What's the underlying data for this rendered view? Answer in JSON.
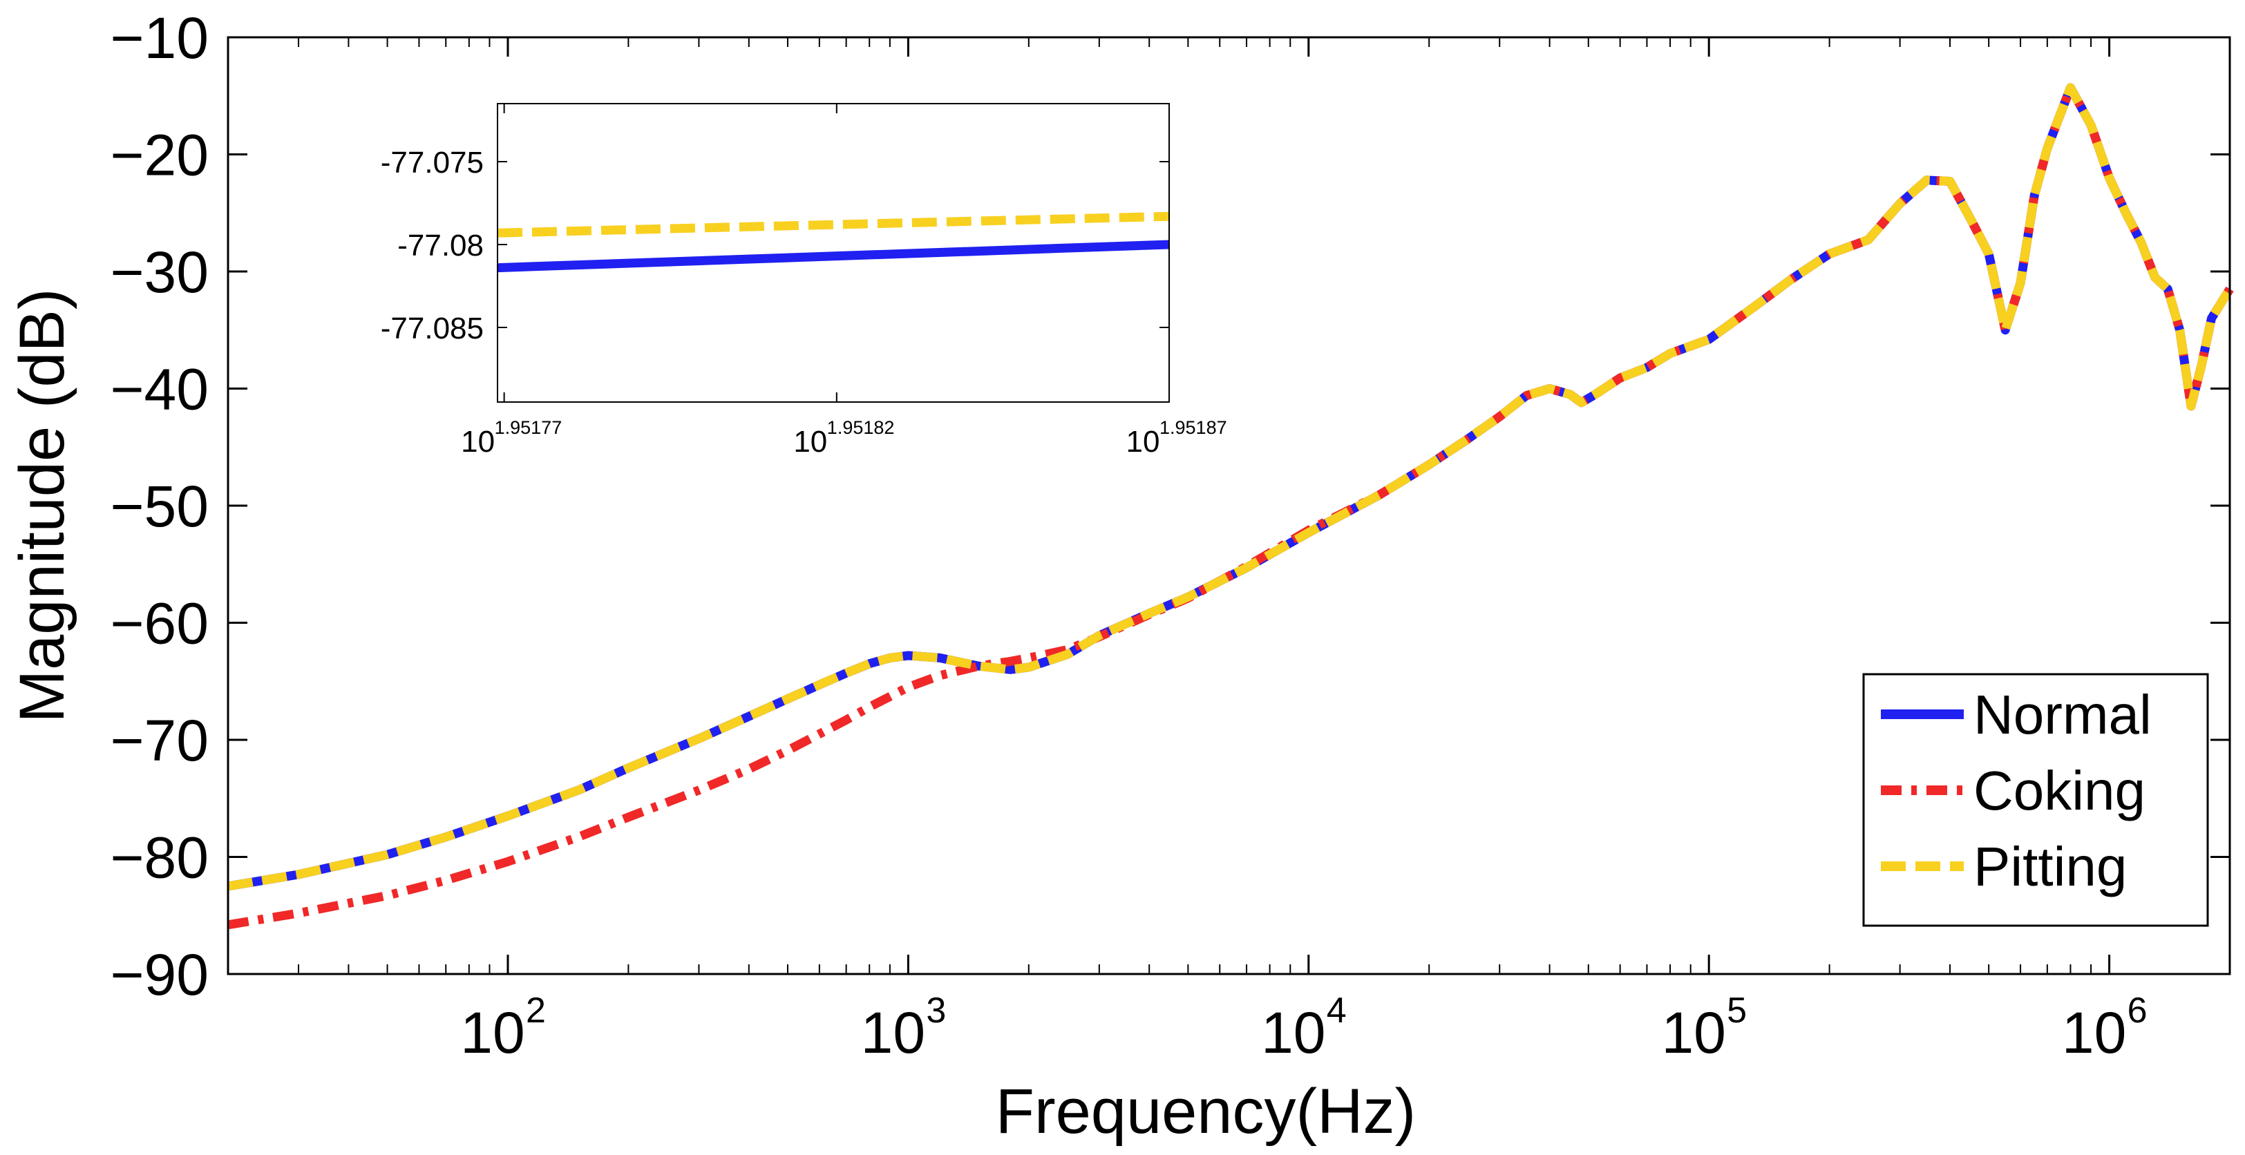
{
  "chart_data": {
    "type": "line",
    "title": "",
    "xlabel": "Frequency(Hz)",
    "ylabel": "Magnitude (dB)",
    "xscale": "log",
    "xlim": [
      20,
      2000000
    ],
    "ylim": [
      -90,
      -10
    ],
    "x_ticks": [
      {
        "base": "10",
        "exp": "2",
        "value": 100
      },
      {
        "base": "10",
        "exp": "3",
        "value": 1000
      },
      {
        "base": "10",
        "exp": "4",
        "value": 10000
      },
      {
        "base": "10",
        "exp": "5",
        "value": 100000
      },
      {
        "base": "10",
        "exp": "6",
        "value": 1000000
      }
    ],
    "y_ticks": [
      {
        "value": -10,
        "label": "−10"
      },
      {
        "value": -20,
        "label": "−20"
      },
      {
        "value": -30,
        "label": "−30"
      },
      {
        "value": -40,
        "label": "−40"
      },
      {
        "value": -50,
        "label": "−50"
      },
      {
        "value": -60,
        "label": "−60"
      },
      {
        "value": -70,
        "label": "−70"
      },
      {
        "value": -80,
        "label": "−80"
      },
      {
        "value": -90,
        "label": "−90"
      }
    ],
    "legend_position": "bottom-right",
    "series": [
      {
        "name": "Normal",
        "color": "#2020f0",
        "style": "solid",
        "x": [
          20,
          30,
          50,
          70,
          100,
          150,
          200,
          300,
          400,
          500,
          600,
          700,
          800,
          900,
          1000,
          1200,
          1500,
          1800,
          2000,
          2500,
          3000,
          4000,
          5000,
          7000,
          10000,
          15000,
          20000,
          25000,
          30000,
          35000,
          40000,
          45000,
          48000,
          52000,
          60000,
          70000,
          80000,
          100000,
          130000,
          160000,
          200000,
          250000,
          300000,
          350000,
          400000,
          450000,
          500000,
          550000,
          600000,
          650000,
          700000,
          800000,
          900000,
          1000000,
          1100000,
          1200000,
          1300000,
          1400000,
          1500000,
          1600000,
          1700000,
          1800000,
          2000000
        ],
        "y": [
          -82.5,
          -81.5,
          -79.8,
          -78.3,
          -76.5,
          -74.3,
          -72.4,
          -69.9,
          -68.0,
          -66.5,
          -65.3,
          -64.3,
          -63.5,
          -63.0,
          -62.8,
          -63.0,
          -63.7,
          -64.0,
          -63.8,
          -62.7,
          -61.1,
          -59.2,
          -57.8,
          -55.3,
          -52.3,
          -49.1,
          -46.5,
          -44.3,
          -42.4,
          -40.6,
          -40.0,
          -40.5,
          -41.2,
          -40.5,
          -39.1,
          -38.2,
          -37.0,
          -35.8,
          -33.0,
          -30.7,
          -28.5,
          -27.3,
          -24.2,
          -22.2,
          -22.3,
          -25.5,
          -28.5,
          -35.0,
          -31.0,
          -23.5,
          -19.5,
          -14.3,
          -17.5,
          -22.0,
          -25.0,
          -27.5,
          -30.5,
          -31.5,
          -35.0,
          -41.5,
          -38.0,
          -34.0,
          -31.5
        ]
      },
      {
        "name": "Coking",
        "color": "#f02828",
        "style": "dashdot",
        "x": [
          20,
          30,
          50,
          70,
          100,
          150,
          200,
          300,
          400,
          500,
          600,
          700,
          800,
          900,
          1000,
          1200,
          1500,
          1800,
          2000,
          2500,
          3000,
          4000,
          5000,
          7000,
          10000,
          15000,
          20000,
          25000,
          30000,
          35000,
          40000,
          45000,
          48000,
          52000,
          60000,
          70000,
          80000,
          100000,
          130000,
          160000,
          200000,
          250000,
          300000,
          350000,
          400000,
          450000,
          500000,
          550000,
          600000,
          650000,
          700000,
          800000,
          900000,
          1000000,
          1100000,
          1200000,
          1300000,
          1400000,
          1500000,
          1600000,
          1700000,
          1800000,
          2000000
        ],
        "y": [
          -85.8,
          -84.8,
          -83.3,
          -82.0,
          -80.4,
          -78.3,
          -76.6,
          -74.3,
          -72.5,
          -70.9,
          -69.5,
          -68.3,
          -67.2,
          -66.3,
          -65.5,
          -64.5,
          -63.7,
          -63.3,
          -63.0,
          -62.3,
          -61.2,
          -59.3,
          -57.9,
          -55.2,
          -52.1,
          -49.1,
          -46.5,
          -44.3,
          -42.4,
          -40.6,
          -40.0,
          -40.5,
          -41.2,
          -40.5,
          -39.1,
          -38.2,
          -37.0,
          -35.8,
          -33.0,
          -30.7,
          -28.5,
          -27.3,
          -24.2,
          -22.2,
          -22.3,
          -25.5,
          -28.5,
          -35.0,
          -31.0,
          -23.5,
          -19.5,
          -14.3,
          -17.5,
          -22.0,
          -25.0,
          -27.5,
          -30.5,
          -31.5,
          -35.0,
          -41.5,
          -38.0,
          -34.0,
          -31.5
        ]
      },
      {
        "name": "Pitting",
        "color": "#f8d020",
        "style": "dashed",
        "x": [
          20,
          30,
          50,
          70,
          100,
          150,
          200,
          300,
          400,
          500,
          600,
          700,
          800,
          900,
          1000,
          1200,
          1500,
          1800,
          2000,
          2500,
          3000,
          4000,
          5000,
          7000,
          10000,
          15000,
          20000,
          25000,
          30000,
          35000,
          40000,
          45000,
          48000,
          52000,
          60000,
          70000,
          80000,
          100000,
          130000,
          160000,
          200000,
          250000,
          300000,
          350000,
          400000,
          450000,
          500000,
          550000,
          600000,
          650000,
          700000,
          800000,
          900000,
          1000000,
          1100000,
          1200000,
          1300000,
          1400000,
          1500000,
          1600000,
          1700000,
          1800000,
          2000000
        ],
        "y": [
          -82.5,
          -81.5,
          -79.8,
          -78.3,
          -76.5,
          -74.3,
          -72.4,
          -69.9,
          -68.0,
          -66.5,
          -65.3,
          -64.3,
          -63.5,
          -63.0,
          -62.8,
          -63.0,
          -63.7,
          -64.0,
          -63.8,
          -62.7,
          -61.1,
          -59.2,
          -57.8,
          -55.3,
          -52.3,
          -49.1,
          -46.5,
          -44.3,
          -42.4,
          -40.6,
          -40.0,
          -40.5,
          -41.2,
          -40.5,
          -39.1,
          -38.2,
          -37.0,
          -35.8,
          -33.0,
          -30.7,
          -28.5,
          -27.3,
          -24.2,
          -22.2,
          -22.3,
          -25.5,
          -28.5,
          -35.0,
          -31.0,
          -23.5,
          -19.5,
          -14.3,
          -17.5,
          -22.0,
          -25.0,
          -27.5,
          -30.5,
          -31.5,
          -35.0,
          -41.5,
          -38.0,
          -34.0,
          -31.5
        ]
      }
    ],
    "inset": {
      "xlim": [
        1.951769,
        1.95187
      ],
      "ylim": [
        -77.0895,
        -77.0715
      ],
      "x_ticks": [
        {
          "base": "10",
          "exp": "1.95177",
          "value": 1.95177
        },
        {
          "base": "10",
          "exp": "1.95182",
          "value": 1.95182
        },
        {
          "base": "10",
          "exp": "1.95187",
          "value": 1.95187
        }
      ],
      "y_ticks": [
        {
          "value": -77.075,
          "label": "-77.075"
        },
        {
          "value": -77.08,
          "label": "-77.08"
        },
        {
          "value": -77.085,
          "label": "-77.085"
        }
      ],
      "series": [
        {
          "name": "Normal",
          "color": "#2020f0",
          "style": "solid",
          "x": [
            1.951769,
            1.95187
          ],
          "y": [
            -77.0814,
            -77.08
          ]
        },
        {
          "name": "Pitting",
          "color": "#f8d020",
          "style": "dashed",
          "x": [
            1.951769,
            1.95187
          ],
          "y": [
            -77.0793,
            -77.0783
          ]
        }
      ]
    }
  }
}
